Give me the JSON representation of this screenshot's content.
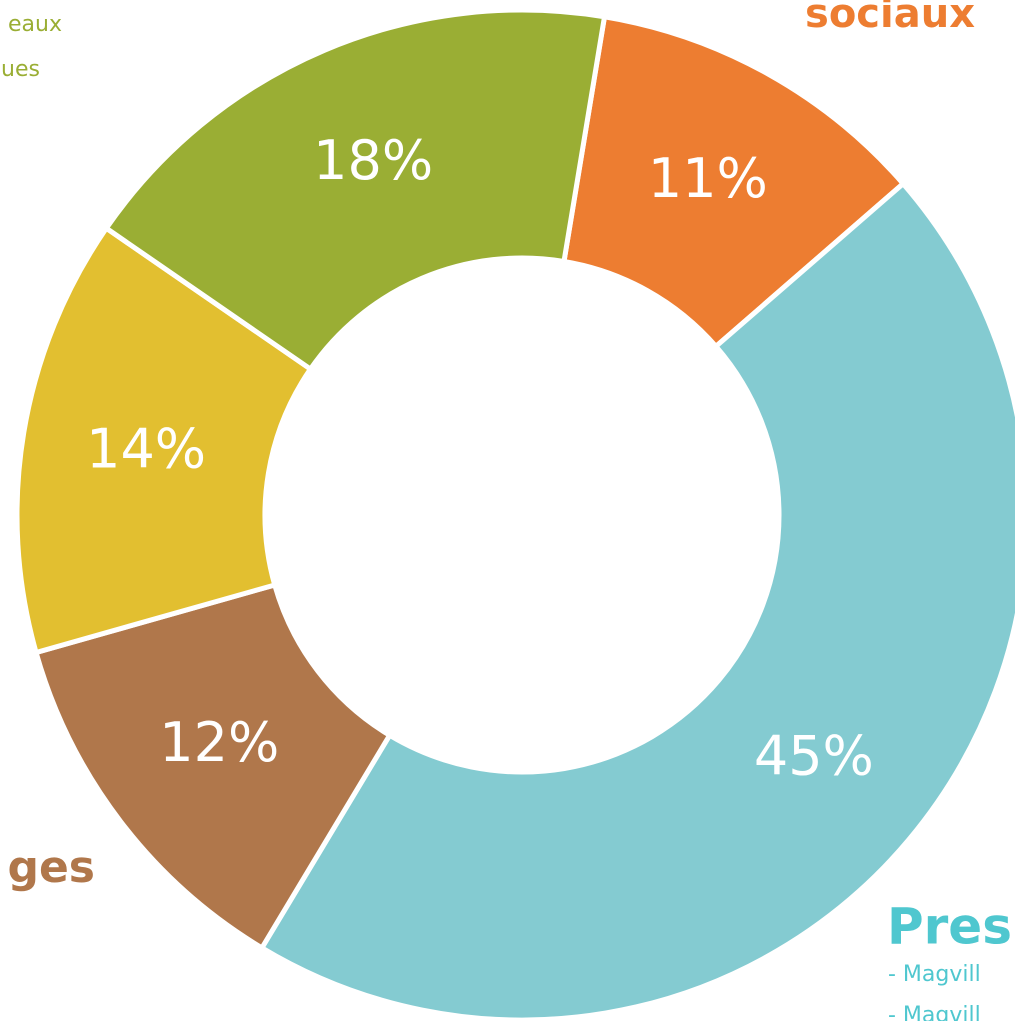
{
  "chart_data": {
    "type": "pie",
    "donut": true,
    "values": [
      11,
      45,
      12,
      14,
      18
    ],
    "value_labels": [
      "11%",
      "45%",
      "12%",
      "14%",
      "18%"
    ],
    "colors": [
      "#ed7d31",
      "#84cbd1",
      "#b0774b",
      "#e2bf30",
      "#9aae34"
    ],
    "annotations": [
      {
        "text": "sociaux",
        "color": "#ed7d31"
      },
      {
        "text": "ges",
        "color": "#b0774b"
      },
      {
        "text": "Pres",
        "color": "#4fc7cf"
      },
      {
        "text": "eaux",
        "color": "#9aae34"
      },
      {
        "text": "ues",
        "color": "#9aae34"
      },
      {
        "text": "- Magvill",
        "color": "#4fc7cf"
      },
      {
        "text": "- Magvill",
        "color": "#4fc7cf"
      }
    ]
  }
}
